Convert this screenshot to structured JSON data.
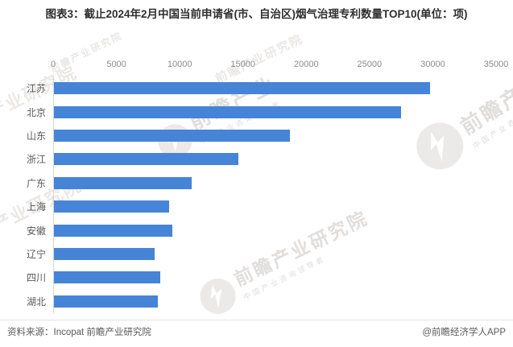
{
  "chart_data": {
    "type": "bar",
    "orientation": "horizontal",
    "title": "图表3：截止2024年2月中国当前申请省(市、自治区)烟气治理专利数量TOP10(单位：项)",
    "categories": [
      "江苏",
      "北京",
      "山东",
      "浙江",
      "广东",
      "上海",
      "安徽",
      "辽宁",
      "四川",
      "湖北"
    ],
    "values": [
      29800,
      27500,
      18700,
      14600,
      10900,
      9100,
      9400,
      8000,
      8400,
      8200
    ],
    "unit": "项",
    "xlim": [
      0,
      35000
    ],
    "x_ticks": [
      0,
      5000,
      10000,
      15000,
      20000,
      25000,
      30000,
      35000
    ],
    "x_axis_position": "top",
    "grid": false,
    "legend": false,
    "bar_color": "#4684D7"
  },
  "footer": {
    "source": "资料来源：Incopat 前瞻产业研究院",
    "credit": "@前瞻经济学人APP"
  },
  "watermark": {
    "brand": "前瞻产业研究院",
    "brand_short": "前瞻产业",
    "tagline": "中国产业咨询领导者",
    "tile_text": "前瞻产业研究院"
  }
}
